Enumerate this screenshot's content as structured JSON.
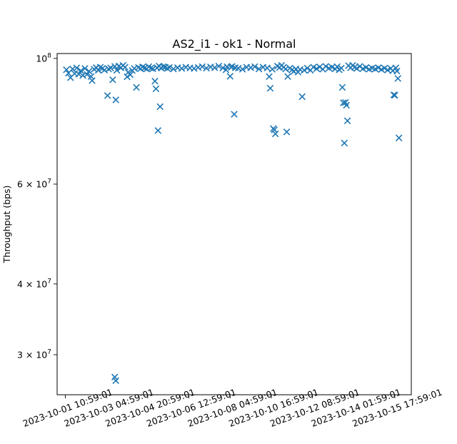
{
  "chart_data": {
    "type": "scatter",
    "title": "AS2_i1 - ok1 - Normal",
    "xlabel": "",
    "ylabel": "Throughput (bps)",
    "yscale": "log",
    "xlim": [
      -0.4,
      16.8
    ],
    "ylim": [
      25500000,
      102000000
    ],
    "x_ticks": [
      {
        "value": 0,
        "label": "2023-10-01 10:59:01"
      },
      {
        "value": 2,
        "label": "2023-10-03 04:59:01"
      },
      {
        "value": 4,
        "label": "2023-10-04 20:59:01"
      },
      {
        "value": 6,
        "label": "2023-10-06 12:59:01"
      },
      {
        "value": 8,
        "label": "2023-10-08 04:59:01"
      },
      {
        "value": 10,
        "label": "2023-10-10 16:59:01"
      },
      {
        "value": 12,
        "label": "2023-10-12 08:59:01"
      },
      {
        "value": 14,
        "label": "2023-10-14 01:59:01"
      },
      {
        "value": 16,
        "label": "2023-10-15 17:59:01"
      }
    ],
    "y_ticks": [
      {
        "value": 100000000,
        "base": "10",
        "exp": "8",
        "mant": ""
      },
      {
        "value": 60000000,
        "base": "10",
        "exp": "7",
        "mant": "6"
      },
      {
        "value": 40000000,
        "base": "10",
        "exp": "7",
        "mant": "4"
      },
      {
        "value": 30000000,
        "base": "10",
        "exp": "7",
        "mant": "3"
      }
    ],
    "times_symbol": "×",
    "marker": "x",
    "color": "#1f77b4",
    "series": [
      {
        "values": [
          [
            0.05,
            95500000
          ],
          [
            0.15,
            94200000
          ],
          [
            0.25,
            92500000
          ],
          [
            0.35,
            95800000
          ],
          [
            0.45,
            94000000
          ],
          [
            0.55,
            96200000
          ],
          [
            0.65,
            93800000
          ],
          [
            0.75,
            95100000
          ],
          [
            0.85,
            93300000
          ],
          [
            0.95,
            96000000
          ],
          [
            1.05,
            93700000
          ],
          [
            1.15,
            94900000
          ],
          [
            1.25,
            92900000
          ],
          [
            1.3,
            91400000
          ],
          [
            1.4,
            95700000
          ],
          [
            1.5,
            96300000
          ],
          [
            1.6,
            95300000
          ],
          [
            1.7,
            96500000
          ],
          [
            1.8,
            96000000
          ],
          [
            1.9,
            95400000
          ],
          [
            2.05,
            86000000
          ],
          [
            2.1,
            95800000
          ],
          [
            2.2,
            96200000
          ],
          [
            2.3,
            91700000
          ],
          [
            2.4,
            96800000
          ],
          [
            2.5,
            95300000
          ],
          [
            2.6,
            96900000
          ],
          [
            2.7,
            96300000
          ],
          [
            2.8,
            97200000
          ],
          [
            2.9,
            96500000
          ],
          [
            2.45,
            84500000
          ],
          [
            2.4,
            27400000
          ],
          [
            2.45,
            27000000
          ],
          [
            3.0,
            92800000
          ],
          [
            3.05,
            94500000
          ],
          [
            3.15,
            93600000
          ],
          [
            3.25,
            95200000
          ],
          [
            3.35,
            96000000
          ],
          [
            3.45,
            88900000
          ],
          [
            3.55,
            96400000
          ],
          [
            3.65,
            95900000
          ],
          [
            3.75,
            96600000
          ],
          [
            3.85,
            96200000
          ],
          [
            3.95,
            95800000
          ],
          [
            4.05,
            96700000
          ],
          [
            4.15,
            96100000
          ],
          [
            4.25,
            95900000
          ],
          [
            4.35,
            91200000
          ],
          [
            4.4,
            88400000
          ],
          [
            4.5,
            74600000
          ],
          [
            4.6,
            82200000
          ],
          [
            4.45,
            96300000
          ],
          [
            4.55,
            96900000
          ],
          [
            4.65,
            96200000
          ],
          [
            4.75,
            96700000
          ],
          [
            4.85,
            96500000
          ],
          [
            4.95,
            96000000
          ],
          [
            5.05,
            96400000
          ],
          [
            5.25,
            95800000
          ],
          [
            5.45,
            96300000
          ],
          [
            5.65,
            96000000
          ],
          [
            5.85,
            96500000
          ],
          [
            6.05,
            96200000
          ],
          [
            6.25,
            96000000
          ],
          [
            6.45,
            96400000
          ],
          [
            6.65,
            96700000
          ],
          [
            6.85,
            96100000
          ],
          [
            7.05,
            96600000
          ],
          [
            7.25,
            96300000
          ],
          [
            7.45,
            96900000
          ],
          [
            7.65,
            96200000
          ],
          [
            7.85,
            96700000
          ],
          [
            8.05,
            96500000
          ],
          [
            7.8,
            95500000
          ],
          [
            8.0,
            93000000
          ],
          [
            8.1,
            96800000
          ],
          [
            8.25,
            96300000
          ],
          [
            8.2,
            79700000
          ],
          [
            8.4,
            96100000
          ],
          [
            8.6,
            95700000
          ],
          [
            8.8,
            96500000
          ],
          [
            9.0,
            96300000
          ],
          [
            9.2,
            96700000
          ],
          [
            9.4,
            95800000
          ],
          [
            9.6,
            96500000
          ],
          [
            9.8,
            96200000
          ],
          [
            9.9,
            92900000
          ],
          [
            9.95,
            88600000
          ],
          [
            10.05,
            95700000
          ],
          [
            10.1,
            75200000
          ],
          [
            10.15,
            74800000
          ],
          [
            10.2,
            73600000
          ],
          [
            10.3,
            96900000
          ],
          [
            10.4,
            96400000
          ],
          [
            10.5,
            97200000
          ],
          [
            10.6,
            96500000
          ],
          [
            10.7,
            95800000
          ],
          [
            10.75,
            74200000
          ],
          [
            10.8,
            92900000
          ],
          [
            10.9,
            96100000
          ],
          [
            11.0,
            95400000
          ],
          [
            11.1,
            94900000
          ],
          [
            11.2,
            95800000
          ],
          [
            11.3,
            94600000
          ],
          [
            11.4,
            95600000
          ],
          [
            11.5,
            85600000
          ],
          [
            11.6,
            95300000
          ],
          [
            11.75,
            96100000
          ],
          [
            11.9,
            95300000
          ],
          [
            12.05,
            96500000
          ],
          [
            12.2,
            95900000
          ],
          [
            12.35,
            96600000
          ],
          [
            12.5,
            95700000
          ],
          [
            12.65,
            96800000
          ],
          [
            12.8,
            96100000
          ],
          [
            12.95,
            96500000
          ],
          [
            13.1,
            95800000
          ],
          [
            13.2,
            96700000
          ],
          [
            13.3,
            95500000
          ],
          [
            13.4,
            96100000
          ],
          [
            13.45,
            88900000
          ],
          [
            13.5,
            83500000
          ],
          [
            13.55,
            70900000
          ],
          [
            13.6,
            83600000
          ],
          [
            13.65,
            82700000
          ],
          [
            13.7,
            77600000
          ],
          [
            13.75,
            97100000
          ],
          [
            13.85,
            96300000
          ],
          [
            13.95,
            97200000
          ],
          [
            14.05,
            96500000
          ],
          [
            14.15,
            96000000
          ],
          [
            14.3,
            96800000
          ],
          [
            14.45,
            95900000
          ],
          [
            14.6,
            96400000
          ],
          [
            14.75,
            95700000
          ],
          [
            14.9,
            96100000
          ],
          [
            15.05,
            95800000
          ],
          [
            15.2,
            96300000
          ],
          [
            15.35,
            95600000
          ],
          [
            15.5,
            96100000
          ],
          [
            15.65,
            95400000
          ],
          [
            15.8,
            96000000
          ],
          [
            15.9,
            95100000
          ],
          [
            15.95,
            86200000
          ],
          [
            16.0,
            86100000
          ],
          [
            16.05,
            96200000
          ],
          [
            16.1,
            95000000
          ],
          [
            16.15,
            92200000
          ],
          [
            16.2,
            72400000
          ]
        ]
      }
    ]
  }
}
